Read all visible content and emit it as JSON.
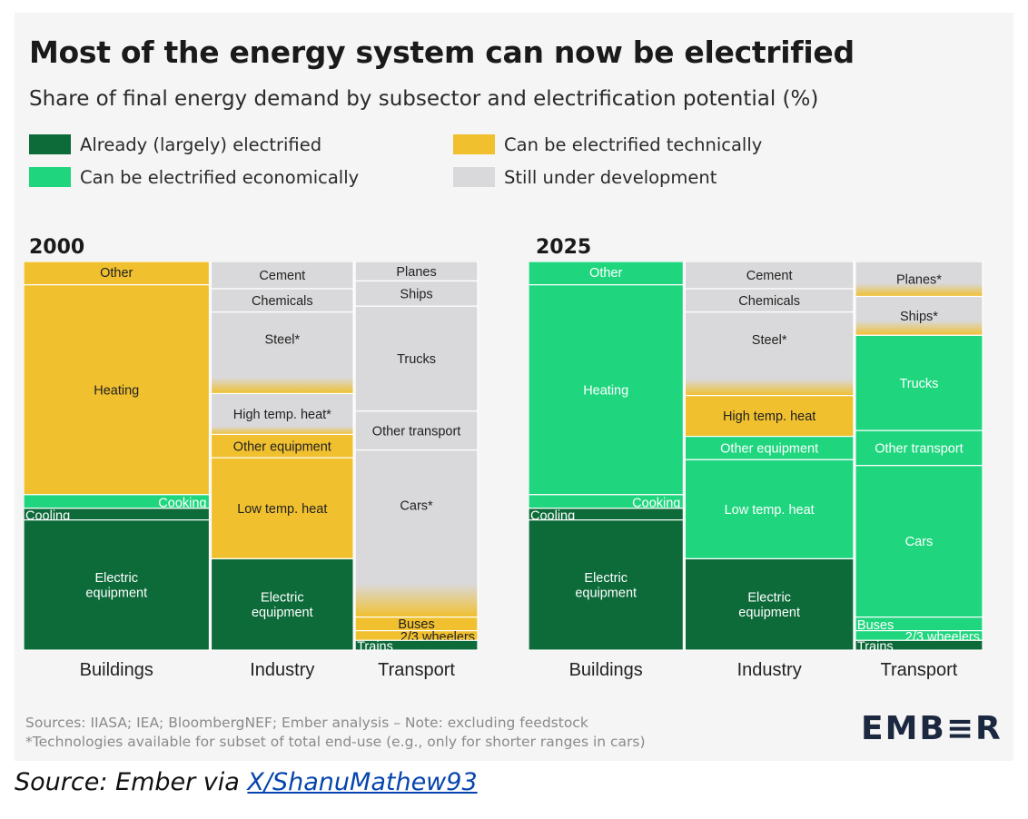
{
  "title": "Most of the energy system can now be electrified",
  "subtitle": "Share of final energy demand by subsector and electrification potential (%)",
  "legend": [
    {
      "label": "Already (largely) electrified",
      "color": "#0d6b3a"
    },
    {
      "label": "Can be electrified economically",
      "color": "#1fd67e"
    },
    {
      "label": "Can be electrified technically",
      "color": "#f0c02f"
    },
    {
      "label": "Still under development",
      "color": "#d9d9db"
    }
  ],
  "footer": {
    "sources": "Sources: IIASA; IEA; BloombergNEF; Ember analysis – Note: excluding feedstock",
    "note": "*Technologies available for subset of total end-use (e.g., only for shorter ranges in cars)"
  },
  "logo": "EMB≡R",
  "source_line": {
    "prefix": "Source: Ember via ",
    "link_text": "X/ShanuMathew93"
  },
  "chart_data": [
    {
      "type": "mosaic",
      "title": "2000",
      "unit": "% of final energy demand (approximate)",
      "sectors": [
        {
          "name": "Buildings",
          "share": 47,
          "segments": [
            {
              "label": "Other",
              "value": 6,
              "category": "technical",
              "display": "yellow",
              "label_pos": "top"
            },
            {
              "label": "Heating",
              "value": 54,
              "category": "technical",
              "display": "yellow"
            },
            {
              "label": "Cooking",
              "value": 3.5,
              "category": "economic",
              "display": "green",
              "label_align": "end"
            },
            {
              "label": "Cooling",
              "value": 3,
              "category": "electrified",
              "display": "dark",
              "label_align": "start"
            },
            {
              "label": "Electric\nequipment",
              "value": 33.5,
              "category": "electrified",
              "display": "dark"
            }
          ]
        },
        {
          "name": "Industry",
          "share": 36,
          "segments": [
            {
              "label": "Cement",
              "value": 7,
              "category": "development",
              "display": "gray"
            },
            {
              "label": "Chemicals",
              "value": 6,
              "category": "development",
              "display": "gray"
            },
            {
              "label": "Steel*",
              "value": 21,
              "category": "development",
              "display": "gray_fade",
              "label_pos": "upper"
            },
            {
              "label": "High temp. heat*",
              "value": 10.5,
              "category": "development",
              "display": "gray_fade"
            },
            {
              "label": "Other equipment",
              "value": 6,
              "category": "technical",
              "display": "yellow"
            },
            {
              "label": "Low temp. heat",
              "value": 26,
              "category": "technical",
              "display": "yellow"
            },
            {
              "label": "Electric\nequipment",
              "value": 23.5,
              "category": "electrified",
              "display": "dark"
            }
          ]
        },
        {
          "name": "Transport",
          "share": 31,
          "segments": [
            {
              "label": "Planes",
              "value": 5,
              "category": "development",
              "display": "gray"
            },
            {
              "label": "Ships",
              "value": 6.5,
              "category": "development",
              "display": "gray"
            },
            {
              "label": "Trucks",
              "value": 27,
              "category": "development",
              "display": "gray"
            },
            {
              "label": "Other transport",
              "value": 10,
              "category": "development",
              "display": "gray"
            },
            {
              "label": "Cars*",
              "value": 43,
              "category": "development",
              "display": "gray_fade",
              "label_pos": "upper"
            },
            {
              "label": "Buses",
              "value": 3.5,
              "category": "technical",
              "display": "yellow"
            },
            {
              "label": "2/3 wheelers",
              "value": 2.5,
              "category": "technical",
              "display": "yellow",
              "label_align": "end"
            },
            {
              "label": "Trains",
              "value": 2.5,
              "category": "electrified",
              "display": "dark",
              "label_align": "start"
            }
          ]
        }
      ]
    },
    {
      "type": "mosaic",
      "title": "2025",
      "unit": "% of final energy demand (approximate)",
      "sectors": [
        {
          "name": "Buildings",
          "share": 45,
          "segments": [
            {
              "label": "Other",
              "value": 6,
              "category": "economic",
              "display": "green",
              "label_pos": "top"
            },
            {
              "label": "Heating",
              "value": 54,
              "category": "economic",
              "display": "green"
            },
            {
              "label": "Cooking",
              "value": 3.5,
              "category": "economic",
              "display": "green",
              "label_align": "end"
            },
            {
              "label": "Cooling",
              "value": 3,
              "category": "electrified",
              "display": "dark",
              "label_align": "start"
            },
            {
              "label": "Electric\nequipment",
              "value": 33.5,
              "category": "electrified",
              "display": "dark"
            }
          ]
        },
        {
          "name": "Industry",
          "share": 49,
          "segments": [
            {
              "label": "Cement",
              "value": 7,
              "category": "development",
              "display": "gray"
            },
            {
              "label": "Chemicals",
              "value": 6,
              "category": "development",
              "display": "gray"
            },
            {
              "label": "Steel*",
              "value": 21.5,
              "category": "development",
              "display": "gray_fade",
              "label_pos": "upper"
            },
            {
              "label": "High temp. heat",
              "value": 10.5,
              "category": "technical",
              "display": "yellow"
            },
            {
              "label": "Other equipment",
              "value": 6,
              "category": "economic",
              "display": "green"
            },
            {
              "label": "Low temp. heat",
              "value": 25.5,
              "category": "economic",
              "display": "green"
            },
            {
              "label": "Electric\nequipment",
              "value": 23.5,
              "category": "electrified",
              "display": "dark"
            }
          ]
        },
        {
          "name": "Transport",
          "share": 37,
          "segments": [
            {
              "label": "Planes*",
              "value": 9,
              "category": "development",
              "display": "gray_to_yellow"
            },
            {
              "label": "Ships*",
              "value": 10,
              "category": "development",
              "display": "gray_to_yellow"
            },
            {
              "label": "Trucks",
              "value": 24.5,
              "category": "economic",
              "display": "green"
            },
            {
              "label": "Other transport",
              "value": 9,
              "category": "economic",
              "display": "green"
            },
            {
              "label": "Cars",
              "value": 39,
              "category": "economic",
              "display": "green"
            },
            {
              "label": "Buses",
              "value": 3.5,
              "category": "economic",
              "display": "green",
              "label_align": "start"
            },
            {
              "label": "2/3 wheelers",
              "value": 2.5,
              "category": "economic",
              "display": "green",
              "label_align": "end"
            },
            {
              "label": "Trains",
              "value": 2.5,
              "category": "electrified",
              "display": "dark",
              "label_align": "start"
            }
          ]
        }
      ]
    }
  ]
}
